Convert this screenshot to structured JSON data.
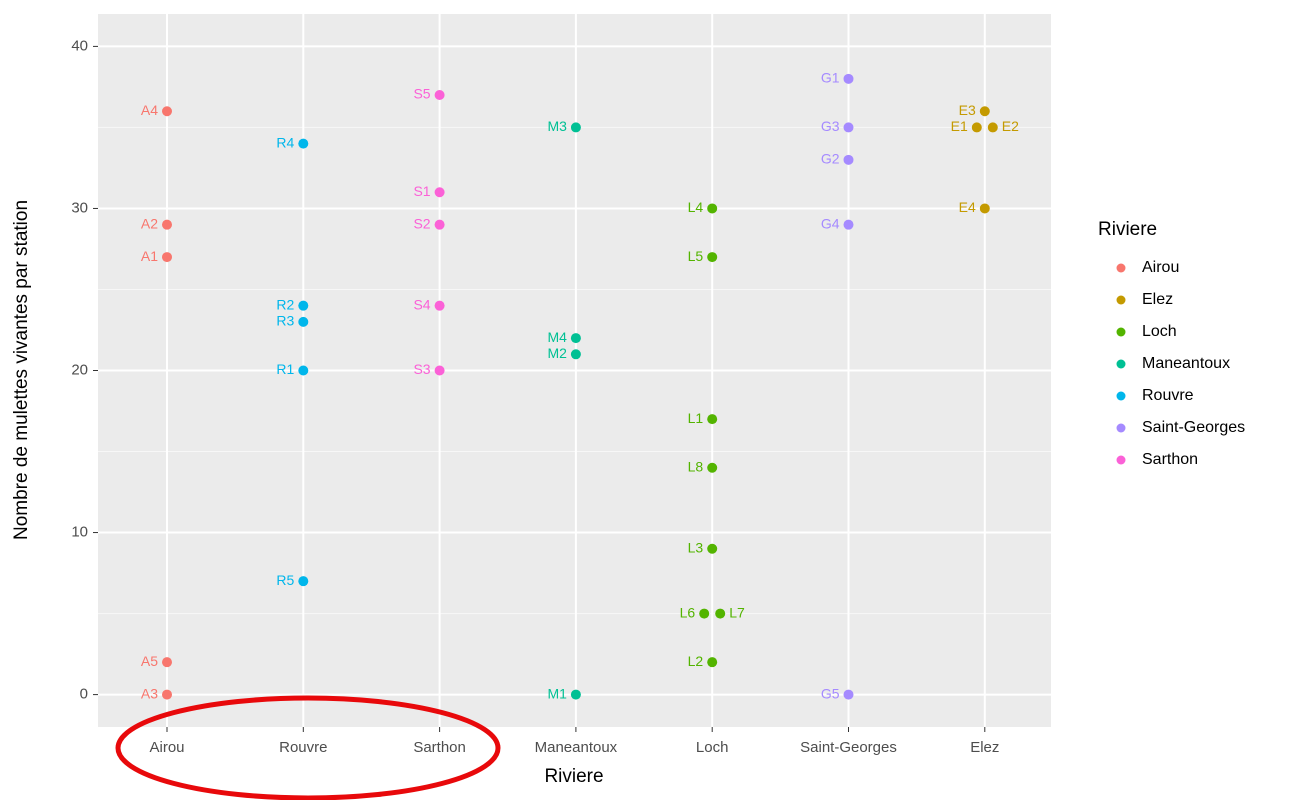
{
  "chart_data": {
    "type": "scatter",
    "x_label": "Riviere",
    "y_label": "Nombre de mulettes vivantes par station",
    "legend_title": "Riviere",
    "categories": [
      "Airou",
      "Rouvre",
      "Sarthon",
      "Maneantoux",
      "Loch",
      "Saint-Georges",
      "Elez"
    ],
    "ylim": [
      -2,
      42
    ],
    "yticks": [
      0,
      10,
      20,
      30,
      40
    ],
    "grid": true,
    "legend": "right",
    "series": [
      {
        "name": "Airou",
        "color": "#F8766D",
        "labels": [
          "A1",
          "A2",
          "A3",
          "A4",
          "A5"
        ],
        "values": [
          27,
          29,
          0,
          36,
          2
        ]
      },
      {
        "name": "Elez",
        "color": "#C49A00",
        "labels": [
          "E1",
          "E2",
          "E3",
          "E4"
        ],
        "values": [
          35,
          35,
          36,
          30
        ]
      },
      {
        "name": "Loch",
        "color": "#53B400",
        "labels": [
          "L1",
          "L2",
          "L3",
          "L4",
          "L5",
          "L6",
          "L7",
          "L8"
        ],
        "values": [
          17,
          2,
          9,
          30,
          27,
          5,
          5,
          14
        ]
      },
      {
        "name": "Maneantoux",
        "color": "#00C094",
        "labels": [
          "M1",
          "M2",
          "M3",
          "M4"
        ],
        "values": [
          0,
          21,
          35,
          22
        ]
      },
      {
        "name": "Rouvre",
        "color": "#00B6EB",
        "labels": [
          "R1",
          "R2",
          "R3",
          "R4",
          "R5"
        ],
        "values": [
          20,
          24,
          23,
          34,
          7
        ]
      },
      {
        "name": "Saint-Georges",
        "color": "#A58AFF",
        "labels": [
          "G1",
          "G2",
          "G3",
          "G4",
          "G5"
        ],
        "values": [
          38,
          33,
          35,
          29,
          0
        ]
      },
      {
        "name": "Sarthon",
        "color": "#FB61D7",
        "labels": [
          "S1",
          "S2",
          "S3",
          "S4",
          "S5"
        ],
        "values": [
          31,
          29,
          20,
          24,
          37
        ]
      }
    ]
  }
}
